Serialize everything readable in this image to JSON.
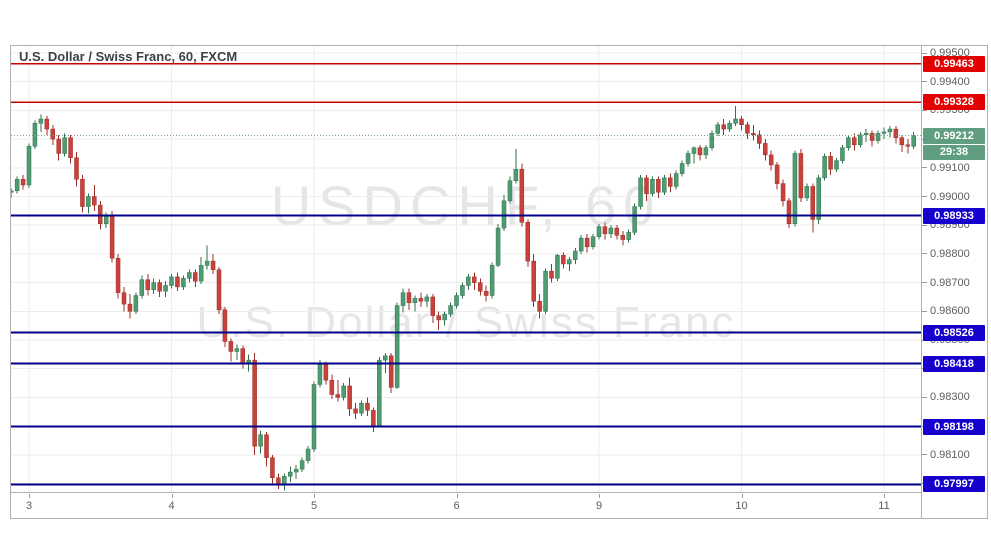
{
  "colors": {
    "up": "#4f9c72",
    "up_border": "#31714e",
    "down": "#c8413a",
    "down_border": "#9c2f28",
    "grid": "#ededed",
    "resistance_line": "#c40000",
    "resistance_badge": "#e20000",
    "support_line": "#00008b",
    "support_badge": "#1500cd",
    "current_badge": "#5f9e80",
    "current_dotted": "#7aa38c",
    "axis_text": "#5d5d5d",
    "watermark": "#e6e6e6"
  },
  "chart_data": {
    "type": "candlestick",
    "title": "U.S. Dollar / Swiss Franc, 60, FXCM",
    "symbol": "USDCHF",
    "interval": "60",
    "provider": "FXCM",
    "watermark_line1": "USDCHF, 60",
    "watermark_line2": "U.S. Dollar / Swiss Franc",
    "x_tick_labels": [
      "3",
      "4",
      "5",
      "6",
      "9",
      "10",
      "11"
    ],
    "y_tick_labels": [
      "0.99500",
      "0.99400",
      "0.99300",
      "0.99200",
      "0.99100",
      "0.99000",
      "0.98900",
      "0.98800",
      "0.98700",
      "0.98600",
      "0.98500",
      "0.98400",
      "0.98300",
      "0.98200",
      "0.98100",
      "0.98000"
    ],
    "ylim": [
      0.9797,
      0.9952
    ],
    "candles_per_day": 24,
    "resistance_levels": [
      {
        "price": 0.99463,
        "label": "0.99463"
      },
      {
        "price": 0.99328,
        "label": "0.99328"
      }
    ],
    "support_levels": [
      {
        "price": 0.98933,
        "label": "0.98933"
      },
      {
        "price": 0.98526,
        "label": "0.98526"
      },
      {
        "price": 0.98418,
        "label": "0.98418"
      },
      {
        "price": 0.98198,
        "label": "0.98198"
      },
      {
        "price": 0.97997,
        "label": "0.97997"
      }
    ],
    "last_price": {
      "value": 0.99212,
      "label": "0.99212",
      "countdown": "29:38"
    },
    "candles_ohlc": [
      [
        0.99015,
        0.9903,
        0.98995,
        0.9902
      ],
      [
        0.9902,
        0.9907,
        0.9901,
        0.9906
      ],
      [
        0.9906,
        0.99075,
        0.99025,
        0.9904
      ],
      [
        0.9904,
        0.99185,
        0.9903,
        0.99175
      ],
      [
        0.99175,
        0.99265,
        0.99165,
        0.99255
      ],
      [
        0.99255,
        0.99285,
        0.99225,
        0.9927
      ],
      [
        0.9927,
        0.9928,
        0.99215,
        0.99235
      ],
      [
        0.99235,
        0.9925,
        0.9918,
        0.992
      ],
      [
        0.992,
        0.99215,
        0.99125,
        0.9915
      ],
      [
        0.9915,
        0.9922,
        0.9914,
        0.99205
      ],
      [
        0.99205,
        0.99215,
        0.99115,
        0.99135
      ],
      [
        0.99135,
        0.99155,
        0.99035,
        0.9906
      ],
      [
        0.9906,
        0.99075,
        0.98945,
        0.98965
      ],
      [
        0.98965,
        0.9901,
        0.9894,
        0.99
      ],
      [
        0.99,
        0.9904,
        0.9895,
        0.9897
      ],
      [
        0.9897,
        0.98985,
        0.98885,
        0.98905
      ],
      [
        0.98905,
        0.98945,
        0.9889,
        0.98935
      ],
      [
        0.98935,
        0.9895,
        0.9877,
        0.98785
      ],
      [
        0.98785,
        0.988,
        0.98645,
        0.98665
      ],
      [
        0.98665,
        0.98685,
        0.986,
        0.98625
      ],
      [
        0.98625,
        0.9866,
        0.98575,
        0.986
      ],
      [
        0.986,
        0.98665,
        0.9859,
        0.98655
      ],
      [
        0.98655,
        0.98725,
        0.98645,
        0.9871
      ],
      [
        0.9871,
        0.9873,
        0.98655,
        0.98675
      ],
      [
        0.98675,
        0.98715,
        0.9866,
        0.987
      ],
      [
        0.987,
        0.9871,
        0.9865,
        0.9867
      ],
      [
        0.9867,
        0.98705,
        0.9865,
        0.9869
      ],
      [
        0.9869,
        0.9873,
        0.9868,
        0.9872
      ],
      [
        0.9872,
        0.98735,
        0.9867,
        0.98685
      ],
      [
        0.98685,
        0.98725,
        0.98675,
        0.98715
      ],
      [
        0.98715,
        0.98745,
        0.987,
        0.98735
      ],
      [
        0.98735,
        0.98745,
        0.98685,
        0.98705
      ],
      [
        0.98705,
        0.9879,
        0.98695,
        0.9876
      ],
      [
        0.9876,
        0.9883,
        0.98745,
        0.98775
      ],
      [
        0.98775,
        0.988,
        0.9873,
        0.98745
      ],
      [
        0.98745,
        0.98755,
        0.9859,
        0.98605
      ],
      [
        0.98605,
        0.98615,
        0.98475,
        0.98495
      ],
      [
        0.98495,
        0.98505,
        0.98425,
        0.9846
      ],
      [
        0.9846,
        0.98485,
        0.9843,
        0.9847
      ],
      [
        0.9847,
        0.9848,
        0.984,
        0.9842
      ],
      [
        0.9842,
        0.9845,
        0.9839,
        0.9843
      ],
      [
        0.9843,
        0.98455,
        0.981,
        0.9813
      ],
      [
        0.9813,
        0.98185,
        0.98105,
        0.9817
      ],
      [
        0.9817,
        0.9818,
        0.9806,
        0.9809
      ],
      [
        0.9809,
        0.981,
        0.98,
        0.9802
      ],
      [
        0.9802,
        0.98035,
        0.9798,
        0.97995
      ],
      [
        0.97995,
        0.98035,
        0.97975,
        0.98025
      ],
      [
        0.98025,
        0.9806,
        0.98005,
        0.9804
      ],
      [
        0.9804,
        0.98065,
        0.98015,
        0.9805
      ],
      [
        0.9805,
        0.9809,
        0.9804,
        0.9808
      ],
      [
        0.9808,
        0.9813,
        0.9807,
        0.9812
      ],
      [
        0.9812,
        0.98355,
        0.9811,
        0.98345
      ],
      [
        0.98345,
        0.9843,
        0.98335,
        0.98415
      ],
      [
        0.98415,
        0.98425,
        0.98345,
        0.9836
      ],
      [
        0.9836,
        0.9838,
        0.98295,
        0.9831
      ],
      [
        0.9831,
        0.9836,
        0.98285,
        0.983
      ],
      [
        0.983,
        0.9835,
        0.9829,
        0.9834
      ],
      [
        0.9834,
        0.9837,
        0.98235,
        0.9826
      ],
      [
        0.9826,
        0.9828,
        0.98225,
        0.98245
      ],
      [
        0.98245,
        0.9829,
        0.98235,
        0.9828
      ],
      [
        0.9828,
        0.983,
        0.98235,
        0.98255
      ],
      [
        0.98255,
        0.98265,
        0.9818,
        0.982
      ],
      [
        0.982,
        0.9844,
        0.98195,
        0.9843
      ],
      [
        0.9843,
        0.98455,
        0.98385,
        0.98445
      ],
      [
        0.98445,
        0.98455,
        0.98315,
        0.98335
      ],
      [
        0.98335,
        0.9863,
        0.9833,
        0.9862
      ],
      [
        0.9862,
        0.9868,
        0.98595,
        0.98665
      ],
      [
        0.98665,
        0.9868,
        0.98605,
        0.9863
      ],
      [
        0.9863,
        0.98655,
        0.986,
        0.98645
      ],
      [
        0.98645,
        0.98665,
        0.98615,
        0.98635
      ],
      [
        0.98635,
        0.9866,
        0.98615,
        0.9865
      ],
      [
        0.9865,
        0.9866,
        0.9856,
        0.98585
      ],
      [
        0.98585,
        0.986,
        0.98535,
        0.9857
      ],
      [
        0.9857,
        0.986,
        0.9855,
        0.9859
      ],
      [
        0.9859,
        0.9863,
        0.9858,
        0.9862
      ],
      [
        0.9862,
        0.98665,
        0.9861,
        0.98655
      ],
      [
        0.98655,
        0.987,
        0.98645,
        0.9869
      ],
      [
        0.9869,
        0.9873,
        0.98675,
        0.9872
      ],
      [
        0.9872,
        0.98735,
        0.98675,
        0.987
      ],
      [
        0.987,
        0.98715,
        0.98655,
        0.9867
      ],
      [
        0.9867,
        0.9869,
        0.98635,
        0.98655
      ],
      [
        0.98655,
        0.9877,
        0.98645,
        0.9876
      ],
      [
        0.9876,
        0.98905,
        0.98755,
        0.9889
      ],
      [
        0.9889,
        0.99005,
        0.9888,
        0.98985
      ],
      [
        0.98985,
        0.9907,
        0.98975,
        0.99055
      ],
      [
        0.99055,
        0.99165,
        0.99045,
        0.99095
      ],
      [
        0.99095,
        0.99115,
        0.98895,
        0.9891
      ],
      [
        0.9891,
        0.9892,
        0.98755,
        0.98775
      ],
      [
        0.98775,
        0.988,
        0.98615,
        0.98635
      ],
      [
        0.98635,
        0.9866,
        0.98575,
        0.986
      ],
      [
        0.986,
        0.9875,
        0.9859,
        0.9874
      ],
      [
        0.9874,
        0.98765,
        0.987,
        0.98715
      ],
      [
        0.98715,
        0.988,
        0.98705,
        0.98795
      ],
      [
        0.98795,
        0.98805,
        0.9875,
        0.98765
      ],
      [
        0.98765,
        0.9879,
        0.9874,
        0.9878
      ],
      [
        0.9878,
        0.9882,
        0.98765,
        0.9881
      ],
      [
        0.9881,
        0.98865,
        0.988,
        0.98855
      ],
      [
        0.98855,
        0.9887,
        0.98805,
        0.98825
      ],
      [
        0.98825,
        0.9887,
        0.98815,
        0.9886
      ],
      [
        0.9886,
        0.98905,
        0.9885,
        0.98895
      ],
      [
        0.98895,
        0.9891,
        0.9885,
        0.9887
      ],
      [
        0.9887,
        0.989,
        0.98855,
        0.9889
      ],
      [
        0.9889,
        0.989,
        0.9885,
        0.98865
      ],
      [
        0.98865,
        0.9888,
        0.9883,
        0.9885
      ],
      [
        0.9885,
        0.98885,
        0.9884,
        0.98875
      ],
      [
        0.98875,
        0.98975,
        0.98865,
        0.98965
      ],
      [
        0.98965,
        0.99075,
        0.98955,
        0.99065
      ],
      [
        0.99065,
        0.99075,
        0.98985,
        0.9901
      ],
      [
        0.9901,
        0.9907,
        0.99,
        0.9906
      ],
      [
        0.9906,
        0.9907,
        0.98995,
        0.99015
      ],
      [
        0.99015,
        0.99075,
        0.99005,
        0.99065
      ],
      [
        0.99065,
        0.9908,
        0.99015,
        0.99035
      ],
      [
        0.99035,
        0.9909,
        0.99025,
        0.9908
      ],
      [
        0.9908,
        0.99125,
        0.9907,
        0.99115
      ],
      [
        0.99115,
        0.9916,
        0.99105,
        0.9915
      ],
      [
        0.9915,
        0.99175,
        0.99115,
        0.9917
      ],
      [
        0.9917,
        0.9918,
        0.99125,
        0.99145
      ],
      [
        0.99145,
        0.9918,
        0.9913,
        0.9917
      ],
      [
        0.9917,
        0.9923,
        0.9916,
        0.9922
      ],
      [
        0.9922,
        0.9926,
        0.9921,
        0.9925
      ],
      [
        0.9925,
        0.9927,
        0.99215,
        0.99235
      ],
      [
        0.99235,
        0.99265,
        0.99225,
        0.99255
      ],
      [
        0.99255,
        0.99315,
        0.99245,
        0.9927
      ],
      [
        0.9927,
        0.9928,
        0.9923,
        0.9925
      ],
      [
        0.9925,
        0.9926,
        0.992,
        0.9922
      ],
      [
        0.9922,
        0.9925,
        0.99195,
        0.99215
      ],
      [
        0.99215,
        0.9923,
        0.99165,
        0.99185
      ],
      [
        0.99185,
        0.992,
        0.99125,
        0.99145
      ],
      [
        0.99145,
        0.9916,
        0.9909,
        0.9911
      ],
      [
        0.9911,
        0.9912,
        0.99025,
        0.99045
      ],
      [
        0.99045,
        0.9906,
        0.98965,
        0.98985
      ],
      [
        0.98985,
        0.98995,
        0.9889,
        0.98905
      ],
      [
        0.98905,
        0.9916,
        0.98895,
        0.9915
      ],
      [
        0.9915,
        0.99165,
        0.9898,
        0.98995
      ],
      [
        0.98995,
        0.99045,
        0.98985,
        0.99035
      ],
      [
        0.99035,
        0.99045,
        0.98875,
        0.9892
      ],
      [
        0.9892,
        0.99075,
        0.98905,
        0.99065
      ],
      [
        0.99065,
        0.9915,
        0.99055,
        0.9914
      ],
      [
        0.9914,
        0.99155,
        0.99075,
        0.99095
      ],
      [
        0.99095,
        0.99135,
        0.99085,
        0.99125
      ],
      [
        0.99125,
        0.9918,
        0.99115,
        0.9917
      ],
      [
        0.9917,
        0.99215,
        0.9916,
        0.99205
      ],
      [
        0.99205,
        0.9922,
        0.9916,
        0.9918
      ],
      [
        0.9918,
        0.99225,
        0.9917,
        0.99215
      ],
      [
        0.99215,
        0.99235,
        0.9919,
        0.9922
      ],
      [
        0.9922,
        0.9923,
        0.99175,
        0.99195
      ],
      [
        0.99195,
        0.9923,
        0.99185,
        0.9922
      ],
      [
        0.9922,
        0.9924,
        0.992,
        0.99225
      ],
      [
        0.99225,
        0.99245,
        0.99205,
        0.99235
      ],
      [
        0.99235,
        0.99245,
        0.99185,
        0.99205
      ],
      [
        0.99205,
        0.99215,
        0.99155,
        0.9918
      ],
      [
        0.9918,
        0.992,
        0.9915,
        0.99175
      ],
      [
        0.99175,
        0.99225,
        0.99165,
        0.99212
      ]
    ]
  }
}
